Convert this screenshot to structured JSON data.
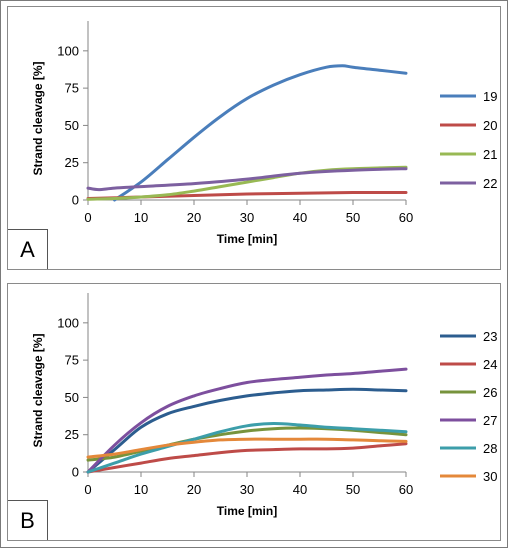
{
  "chart_data": [
    {
      "panel_label": "A",
      "type": "line",
      "xlabel": "Time [min]",
      "ylabel": "Strand cleavage [%]",
      "xlim": [
        0,
        60
      ],
      "ylim": [
        0,
        120
      ],
      "xticks": [
        0,
        10,
        20,
        30,
        40,
        50,
        60
      ],
      "yticks": [
        0,
        25,
        50,
        75,
        100
      ],
      "grid": false,
      "legend_position": "right",
      "series": [
        {
          "name": "19",
          "color": "#4a7ebb",
          "x": [
            5,
            10,
            15,
            20,
            25,
            30,
            35,
            40,
            45,
            48,
            50,
            55,
            60
          ],
          "y": [
            0,
            12,
            27,
            42,
            56,
            68,
            77,
            84,
            89,
            90,
            89,
            87,
            85
          ]
        },
        {
          "name": "20",
          "color": "#be4b48",
          "x": [
            0,
            10,
            20,
            30,
            40,
            50,
            60
          ],
          "y": [
            1,
            2,
            3,
            4,
            4.5,
            5,
            5
          ]
        },
        {
          "name": "21",
          "color": "#98b954",
          "x": [
            0,
            5,
            10,
            15,
            20,
            25,
            30,
            35,
            40,
            45,
            50,
            55,
            60
          ],
          "y": [
            0.5,
            1,
            2,
            3.5,
            6,
            9,
            12,
            15,
            18,
            20,
            21,
            21.5,
            22
          ]
        },
        {
          "name": "22",
          "color": "#7d60a0",
          "x": [
            0,
            2,
            5,
            10,
            20,
            30,
            40,
            50,
            60
          ],
          "y": [
            8,
            7,
            8,
            9,
            11,
            14,
            18,
            20,
            21
          ]
        }
      ]
    },
    {
      "panel_label": "B",
      "type": "line",
      "xlabel": "Time [min]",
      "ylabel": "Strand cleavage [%]",
      "xlim": [
        0,
        60
      ],
      "ylim": [
        0,
        120
      ],
      "xticks": [
        0,
        10,
        20,
        30,
        40,
        50,
        60
      ],
      "yticks": [
        0,
        25,
        50,
        75,
        100
      ],
      "grid": false,
      "legend_position": "right",
      "series": [
        {
          "name": "23",
          "color": "#2c5d8f",
          "x": [
            0,
            5,
            10,
            15,
            20,
            25,
            30,
            35,
            40,
            45,
            50,
            55,
            60
          ],
          "y": [
            0,
            15,
            30,
            39,
            44,
            48,
            51,
            53,
            54.5,
            55,
            55.5,
            55,
            54.5
          ]
        },
        {
          "name": "24",
          "color": "#be4b48",
          "x": [
            0,
            5,
            10,
            15,
            20,
            25,
            30,
            35,
            40,
            45,
            50,
            55,
            60
          ],
          "y": [
            0,
            3,
            6,
            9,
            11,
            13,
            14.5,
            15,
            15.5,
            15.5,
            16,
            17.5,
            19
          ]
        },
        {
          "name": "26",
          "color": "#77933c",
          "x": [
            0,
            5,
            10,
            15,
            20,
            25,
            30,
            35,
            40,
            45,
            50,
            55,
            60
          ],
          "y": [
            8,
            10,
            14,
            18,
            22,
            25,
            27.5,
            29,
            29.5,
            29,
            28,
            26.5,
            25
          ]
        },
        {
          "name": "27",
          "color": "#7d4f9e",
          "x": [
            0,
            5,
            10,
            15,
            20,
            25,
            30,
            35,
            40,
            45,
            50,
            55,
            60
          ],
          "y": [
            0,
            18,
            33,
            44,
            51,
            56,
            60,
            62,
            63.5,
            65,
            66,
            67.5,
            69
          ]
        },
        {
          "name": "28",
          "color": "#3c9eaa",
          "x": [
            0,
            5,
            10,
            15,
            20,
            25,
            30,
            35,
            40,
            45,
            50,
            55,
            60
          ],
          "y": [
            0,
            6,
            12,
            17,
            22,
            27,
            31,
            32.5,
            31.5,
            30,
            29,
            28,
            27
          ]
        },
        {
          "name": "30",
          "color": "#e4883a",
          "x": [
            0,
            5,
            10,
            15,
            20,
            25,
            30,
            35,
            40,
            45,
            50,
            55,
            60
          ],
          "y": [
            10,
            12,
            15,
            18,
            20,
            21.5,
            22,
            22,
            22,
            22,
            21.5,
            21,
            20.5
          ]
        }
      ]
    }
  ]
}
